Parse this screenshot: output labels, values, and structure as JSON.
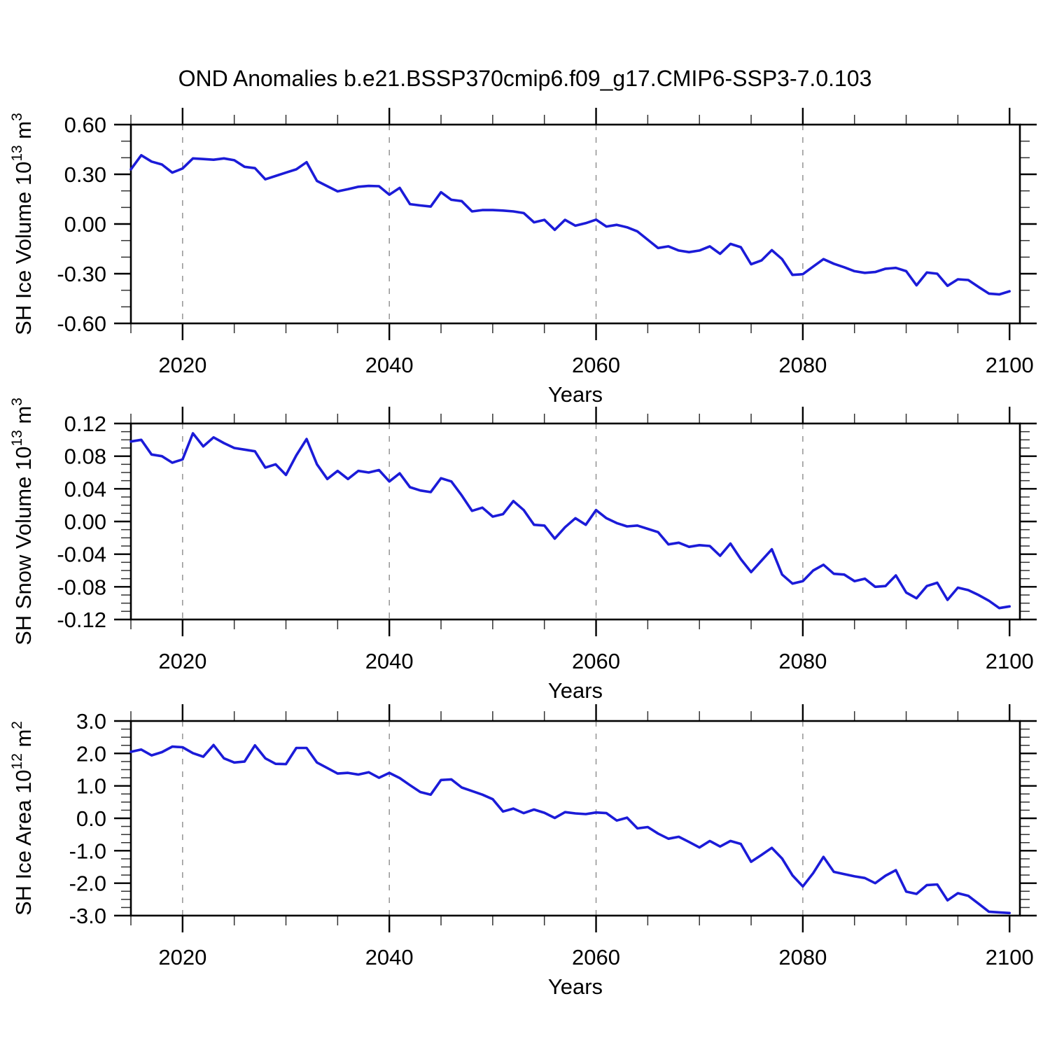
{
  "chart_data": {
    "type": "line",
    "title": "OND Anomalies b.e21.BSSP370cmip6.f09_g17.CMIP6-SSP3-7.0.103",
    "line_color": "#1b1bd8",
    "grid_color": "#8c8c8c",
    "frame_color": "#000000",
    "x_axis": {
      "label": "Years",
      "lim": [
        2015,
        2101
      ],
      "major_ticks": [
        2020,
        2040,
        2060,
        2080,
        2100
      ],
      "major_tick_labels": [
        "2020",
        "2040",
        "2060",
        "2080",
        "2100"
      ],
      "minor_step": 5,
      "gridlines": [
        2020,
        2040,
        2060,
        2080
      ],
      "grid_dashed": true
    },
    "x_years": {
      "start": 2015,
      "end": 2100,
      "step": 1
    },
    "panels": [
      {
        "name": "sh-ice-volume",
        "ylabel_plain": "SH Ice Volume 10^13 m^3",
        "ylabel": {
          "pre": "SH Ice Volume 10",
          "sup1": "13",
          "mid": " m",
          "sup2": "3"
        },
        "ylim": [
          -0.6,
          0.6
        ],
        "ytick_values": [
          0.6,
          0.3,
          0.0,
          -0.3,
          -0.6
        ],
        "ytick_labels": [
          "0.60",
          "0.30",
          "0.00",
          "-0.30",
          "-0.60"
        ],
        "yminor_step": 0.1,
        "values": [
          0.33,
          0.415,
          0.377,
          0.359,
          0.31,
          0.335,
          0.396,
          0.392,
          0.388,
          0.396,
          0.385,
          0.345,
          0.337,
          0.27,
          0.29,
          0.31,
          0.33,
          0.373,
          0.26,
          0.228,
          0.197,
          0.21,
          0.225,
          0.23,
          0.228,
          0.177,
          0.218,
          0.12,
          0.112,
          0.105,
          0.192,
          0.146,
          0.138,
          0.076,
          0.084,
          0.084,
          0.081,
          0.076,
          0.066,
          0.01,
          0.025,
          -0.035,
          0.025,
          -0.01,
          0.005,
          0.026,
          -0.015,
          -0.005,
          -0.02,
          -0.045,
          -0.095,
          -0.145,
          -0.135,
          -0.16,
          -0.17,
          -0.16,
          -0.135,
          -0.18,
          -0.12,
          -0.14,
          -0.243,
          -0.22,
          -0.158,
          -0.212,
          -0.307,
          -0.303,
          -0.257,
          -0.212,
          -0.24,
          -0.261,
          -0.285,
          -0.295,
          -0.29,
          -0.27,
          -0.265,
          -0.285,
          -0.37,
          -0.293,
          -0.3,
          -0.373,
          -0.334,
          -0.338,
          -0.38,
          -0.42,
          -0.425,
          -0.406
        ]
      },
      {
        "name": "sh-snow-volume",
        "ylabel_plain": "SH Snow Volume 10^13 m^3",
        "ylabel": {
          "pre": "SH Snow Volume 10",
          "sup1": "13",
          "mid": " m",
          "sup2": "3"
        },
        "ylim": [
          -0.12,
          0.12
        ],
        "ytick_values": [
          0.12,
          0.08,
          0.04,
          0.0,
          -0.04,
          -0.08,
          -0.12
        ],
        "ytick_labels": [
          "0.12",
          "0.08",
          "0.04",
          "0.00",
          "-0.04",
          "-0.08",
          "-0.12"
        ],
        "yminor_step": 0.01,
        "values": [
          0.098,
          0.1,
          0.082,
          0.08,
          0.072,
          0.076,
          0.108,
          0.092,
          0.103,
          0.096,
          0.09,
          0.088,
          0.086,
          0.066,
          0.07,
          0.057,
          0.081,
          0.101,
          0.07,
          0.052,
          0.062,
          0.052,
          0.062,
          0.06,
          0.063,
          0.049,
          0.059,
          0.042,
          0.038,
          0.036,
          0.053,
          0.049,
          0.032,
          0.013,
          0.017,
          0.006,
          0.009,
          0.025,
          0.014,
          -0.004,
          -0.005,
          -0.021,
          -0.007,
          0.004,
          -0.004,
          0.014,
          0.004,
          -0.002,
          -0.006,
          -0.005,
          -0.009,
          -0.013,
          -0.028,
          -0.026,
          -0.031,
          -0.029,
          -0.03,
          -0.042,
          -0.027,
          -0.046,
          -0.062,
          -0.048,
          -0.034,
          -0.065,
          -0.076,
          -0.073,
          -0.06,
          -0.053,
          -0.064,
          -0.065,
          -0.073,
          -0.07,
          -0.08,
          -0.079,
          -0.066,
          -0.087,
          -0.094,
          -0.079,
          -0.075,
          -0.096,
          -0.081,
          -0.084,
          -0.09,
          -0.097,
          -0.106,
          -0.104
        ]
      },
      {
        "name": "sh-ice-area",
        "ylabel_plain": "SH Ice Area 10^12 m^2",
        "ylabel": {
          "pre": "SH Ice Area 10",
          "sup1": "12",
          "mid": " m",
          "sup2": "2"
        },
        "ylim": [
          -3.0,
          3.0
        ],
        "ytick_values": [
          3.0,
          2.0,
          1.0,
          0.0,
          -1.0,
          -2.0,
          -3.0
        ],
        "ytick_labels": [
          "3.0",
          "2.0",
          "1.0",
          "0.0",
          "-1.0",
          "-2.0",
          "-3.0"
        ],
        "yminor_step": 0.25,
        "values": [
          2.05,
          2.12,
          1.94,
          2.04,
          2.21,
          2.19,
          2.01,
          1.9,
          2.26,
          1.85,
          1.72,
          1.75,
          2.25,
          1.85,
          1.68,
          1.67,
          2.17,
          2.17,
          1.72,
          1.55,
          1.38,
          1.4,
          1.35,
          1.42,
          1.25,
          1.4,
          1.24,
          1.02,
          0.81,
          0.73,
          1.18,
          1.2,
          0.95,
          0.84,
          0.73,
          0.59,
          0.21,
          0.3,
          0.16,
          0.27,
          0.17,
          0.01,
          0.19,
          0.15,
          0.13,
          0.18,
          0.16,
          -0.07,
          0.02,
          -0.31,
          -0.27,
          -0.47,
          -0.63,
          -0.57,
          -0.73,
          -0.9,
          -0.7,
          -0.87,
          -0.7,
          -0.79,
          -1.34,
          -1.13,
          -0.91,
          -1.24,
          -1.76,
          -2.1,
          -1.69,
          -1.19,
          -1.65,
          -1.72,
          -1.79,
          -1.84,
          -2.0,
          -1.77,
          -1.6,
          -2.26,
          -2.33,
          -2.06,
          -2.04,
          -2.53,
          -2.31,
          -2.39,
          -2.63,
          -2.88,
          -2.9,
          -2.92
        ]
      }
    ]
  }
}
